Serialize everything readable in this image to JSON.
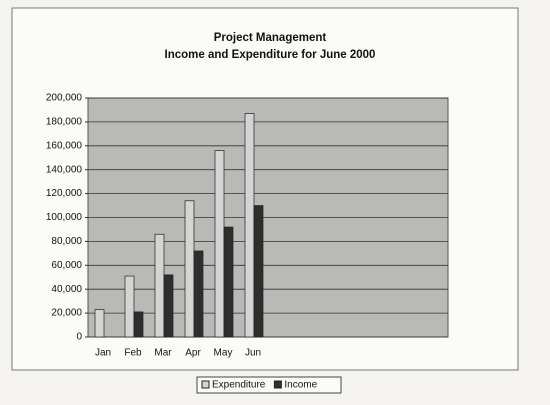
{
  "chart_data": {
    "type": "bar",
    "title": "Project Management",
    "subtitle": "Income and Expenditure for June 2000",
    "categories": [
      "Jan",
      "Feb",
      "Mar",
      "Apr",
      "May",
      "Jun",
      null,
      null,
      null,
      null,
      null,
      null
    ],
    "series": [
      {
        "name": "Expenditure",
        "color": "#d4d4d4",
        "values": [
          23000,
          51000,
          86000,
          114000,
          156000,
          187000,
          null,
          null,
          null,
          null,
          null,
          null
        ]
      },
      {
        "name": "Income",
        "color": "#2e2e2e",
        "values": [
          0,
          21000,
          52000,
          72000,
          92000,
          110000,
          null,
          null,
          null,
          null,
          null,
          null
        ]
      }
    ],
    "ylim": [
      0,
      200000
    ],
    "yticks": [
      0,
      {
        "value": 20000,
        "label": "20,000"
      },
      {
        "value": 40000,
        "label": "40,000"
      },
      {
        "value": 60000,
        "label": "60,000"
      },
      {
        "value": 80000,
        "label": "80,000"
      },
      {
        "value": 100000,
        "label": "100,000"
      },
      {
        "value": 120000,
        "label": "120,000"
      },
      {
        "value": 140000,
        "label": "140,000"
      },
      {
        "value": 160000,
        "label": "160,000"
      },
      {
        "value": 180000,
        "label": "180,000"
      },
      {
        "value": 200000,
        "label": "200,000"
      }
    ],
    "grid": true,
    "legend": "bottom"
  }
}
